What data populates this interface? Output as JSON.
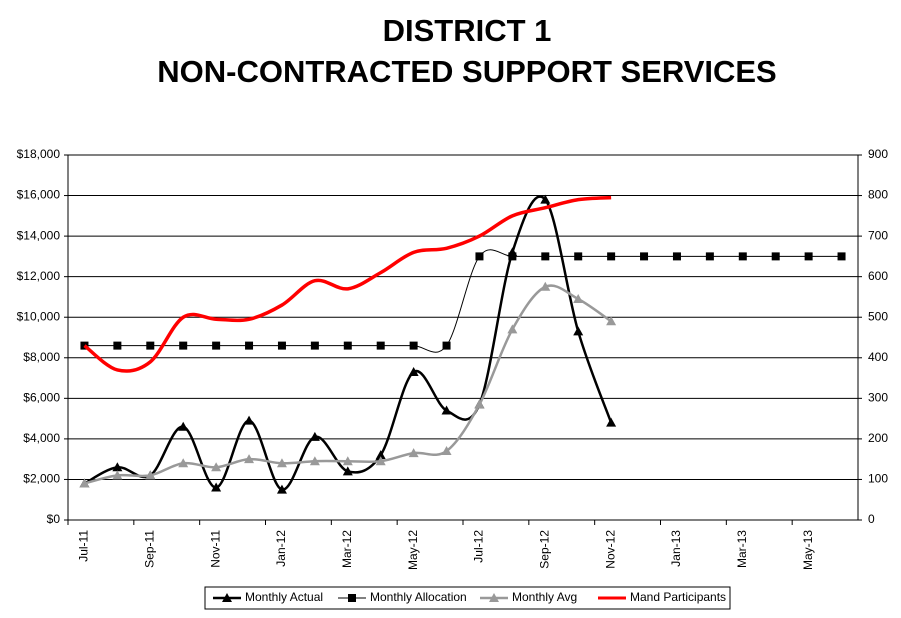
{
  "chart_data": {
    "type": "line",
    "title": "DISTRICT 1",
    "subtitle": "NON-CONTRACTED SUPPORT SERVICES",
    "smooth": true,
    "grid": true,
    "categories": [
      "Jul-11",
      null,
      "Sep-11",
      null,
      "Nov-11",
      null,
      "Jan-12",
      null,
      "Mar-12",
      null,
      "May-12",
      null,
      "Jul-12",
      null,
      "Sep-12",
      null,
      "Nov-12",
      null,
      "Jan-13",
      null,
      "Mar-13",
      null,
      "May-13",
      null
    ],
    "ylim": [
      0,
      18000
    ],
    "yticks": [
      {
        "value": 0,
        "label": "$0"
      },
      {
        "value": 2000,
        "label": "$2,000"
      },
      {
        "value": 4000,
        "label": "$4,000"
      },
      {
        "value": 6000,
        "label": "$6,000"
      },
      {
        "value": 8000,
        "label": "$8,000"
      },
      {
        "value": 10000,
        "label": "$10,000"
      },
      {
        "value": 12000,
        "label": "$12,000"
      },
      {
        "value": 14000,
        "label": "$14,000"
      },
      {
        "value": 16000,
        "label": "$16,000"
      },
      {
        "value": 18000,
        "label": "$18,000"
      }
    ],
    "y2lim": [
      0,
      900
    ],
    "y2ticks": [
      0,
      100,
      200,
      300,
      400,
      500,
      600,
      700,
      800,
      900
    ],
    "series": [
      {
        "name": "Monthly Actual",
        "color": "#000000",
        "marker": "triangle",
        "width": 2.5,
        "values": [
          1800,
          2600,
          2200,
          4600,
          1600,
          4900,
          1500,
          4100,
          2400,
          3200,
          7300,
          5400,
          5700,
          13200,
          15800,
          9300,
          4800,
          null,
          null,
          null,
          null,
          null,
          null,
          null
        ]
      },
      {
        "name": "Monthly Allocation",
        "color": "#000000",
        "marker": "square",
        "width": 1,
        "values": [
          8600,
          8600,
          8600,
          8600,
          8600,
          8600,
          8600,
          8600,
          8600,
          8600,
          8600,
          8600,
          13000,
          13000,
          13000,
          13000,
          13000,
          13000,
          13000,
          13000,
          13000,
          13000,
          13000,
          13000
        ]
      },
      {
        "name": "Monthly Avg",
        "color": "#999999",
        "marker": "triangle",
        "width": 2.5,
        "values": [
          1800,
          2200,
          2200,
          2800,
          2600,
          3000,
          2800,
          2900,
          2900,
          2900,
          3300,
          3400,
          5700,
          9400,
          11500,
          10900,
          9800,
          null,
          null,
          null,
          null,
          null,
          null,
          null
        ]
      },
      {
        "name": "Mand Participants",
        "color": "#ff0000",
        "marker": "none",
        "width": 3.5,
        "axis": "y2",
        "values": [
          430,
          370,
          390,
          500,
          495,
          495,
          530,
          590,
          570,
          610,
          660,
          670,
          700,
          750,
          770,
          790,
          795,
          null,
          null,
          null,
          null,
          null,
          null,
          null
        ]
      }
    ]
  }
}
